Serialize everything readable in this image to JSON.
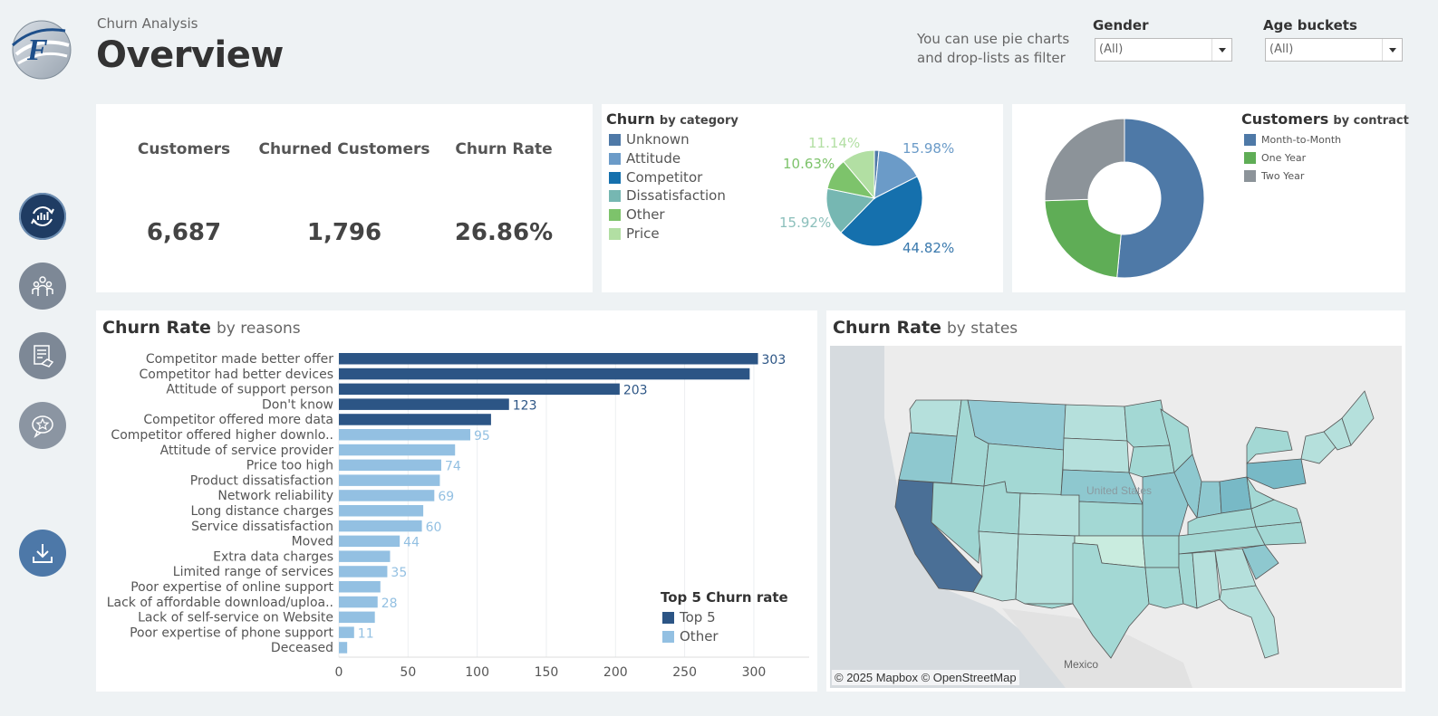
{
  "header": {
    "subtitle": "Churn Analysis",
    "title": "Overview",
    "hint": "You can use pie charts and drop-lists as filter"
  },
  "filters": {
    "gender": {
      "label": "Gender",
      "value": "(All)"
    },
    "age": {
      "label": "Age buckets",
      "value": "(All)"
    }
  },
  "nav": [
    {
      "icon": "chart-cycle-icon",
      "active": true
    },
    {
      "icon": "people-icon",
      "active": false
    },
    {
      "icon": "contract-handshake-icon",
      "active": false
    },
    {
      "icon": "feedback-star-icon",
      "active": false
    },
    {
      "icon": "download-icon",
      "active": false
    }
  ],
  "kpis": [
    {
      "label": "Customers",
      "value": "6,687"
    },
    {
      "label": "Churned Customers",
      "value": "1,796"
    },
    {
      "label": "Churn Rate",
      "value": "26.86%"
    }
  ],
  "churn_category": {
    "title_bold": "Churn",
    "title_rest": "by category",
    "legend": [
      {
        "label": "Unknown",
        "color": "#4e79a7"
      },
      {
        "label": "Attitude",
        "color": "#6b9bc8"
      },
      {
        "label": "Competitor",
        "color": "#1570ad"
      },
      {
        "label": "Dissatisfaction",
        "color": "#76b7b2"
      },
      {
        "label": "Other",
        "color": "#7dc36b"
      },
      {
        "label": "Price",
        "color": "#b2dfa3"
      }
    ],
    "labels": {
      "price": "11.14%",
      "other": "10.63%",
      "attitude": "15.98%",
      "dissatisfaction": "15.92%",
      "competitor": "44.82%"
    }
  },
  "contract": {
    "title_bold": "Customers",
    "title_rest": "by contract",
    "legend": [
      {
        "label": "Month-to-Month",
        "color": "#4e79a7"
      },
      {
        "label": "One Year",
        "color": "#5fad56"
      },
      {
        "label": "Two Year",
        "color": "#8c9399"
      }
    ]
  },
  "reasons": {
    "title_bold": "Churn Rate",
    "title_rest": "by reasons",
    "legend_title": "Top 5 Churn rate",
    "legend": [
      {
        "label": "Top 5",
        "color": "#2c5585"
      },
      {
        "label": "Other",
        "color": "#93c0e2"
      }
    ]
  },
  "states": {
    "title_bold": "Churn Rate",
    "title_rest": "by states",
    "attribution": "© 2025 Mapbox © OpenStreetMap",
    "label_us": "United States",
    "label_mexico": "Mexico"
  },
  "chart_data": [
    {
      "type": "bar",
      "orientation": "horizontal",
      "categories": [
        "Competitor made better offer",
        "Competitor had better devices",
        "Attitude of support person",
        "Don't know",
        "Competitor offered more data",
        "Competitor offered higher downlo..",
        "Attitude of service provider",
        "Price too high",
        "Product dissatisfaction",
        "Network reliability",
        "Long distance charges",
        "Service dissatisfaction",
        "Moved",
        "Extra data charges",
        "Limited range of services",
        "Poor expertise of online support",
        "Lack of affordable download/uploa..",
        "Lack of self-service on Website",
        "Poor expertise of phone support",
        "Deceased"
      ],
      "values": [
        303,
        297,
        203,
        123,
        110,
        95,
        84,
        74,
        73,
        69,
        61,
        60,
        44,
        37,
        35,
        30,
        28,
        26,
        11,
        6
      ],
      "data_labels": [
        "303",
        "",
        "203",
        "123",
        "",
        "95",
        "",
        "74",
        "",
        "69",
        "",
        "60",
        "44",
        "",
        "35",
        "",
        "28",
        "",
        "11",
        ""
      ],
      "top5": [
        true,
        true,
        true,
        true,
        true,
        false,
        false,
        false,
        false,
        false,
        false,
        false,
        false,
        false,
        false,
        false,
        false,
        false,
        false,
        false
      ],
      "xticks": [
        0,
        50,
        100,
        150,
        200,
        250,
        300
      ],
      "xlim": [
        0,
        340
      ],
      "grid": true,
      "legend_position": "bottom-right"
    },
    {
      "type": "pie",
      "categories": [
        "Unknown",
        "Attitude",
        "Competitor",
        "Dissatisfaction",
        "Other",
        "Price"
      ],
      "values": [
        1.51,
        15.98,
        44.82,
        15.92,
        10.63,
        11.14
      ]
    },
    {
      "type": "pie",
      "categories": [
        "Month-to-Month",
        "One Year",
        "Two Year"
      ],
      "values": [
        51.5,
        23,
        25.5
      ]
    }
  ]
}
